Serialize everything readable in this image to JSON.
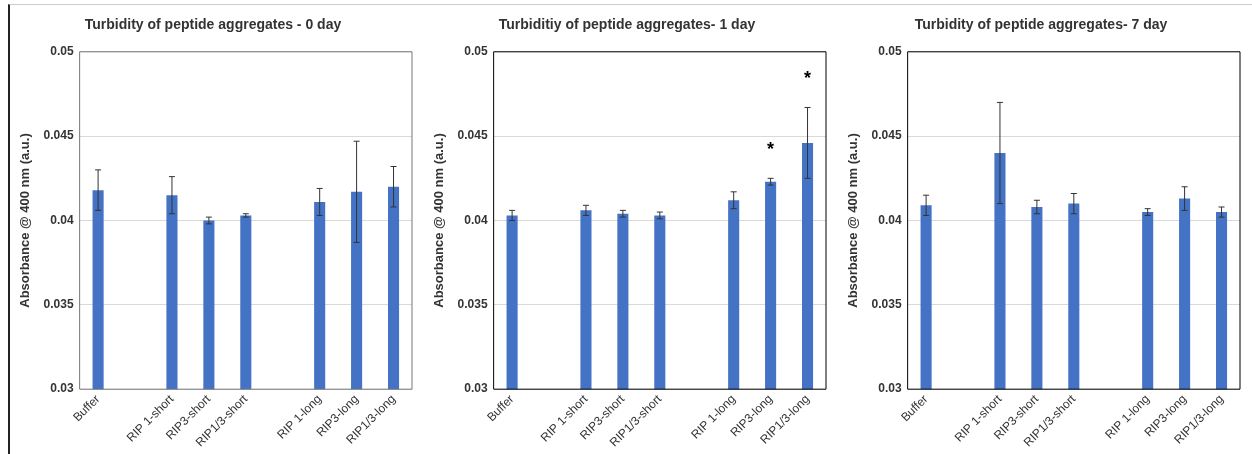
{
  "chart_data": [
    {
      "type": "bar",
      "title": "Turbidity of peptide aggregates - 0 day",
      "ylabel": "Absorbance @ 400 nm (a.u.)",
      "categories": [
        "Buffer",
        null,
        "RIP 1-short",
        "RIP3-short",
        "RIP1/3-short",
        null,
        "RIP 1-long",
        "RIP3-long",
        "RIP1/3-long"
      ],
      "values": [
        0.0418,
        null,
        0.0415,
        0.04,
        0.0403,
        null,
        0.0411,
        0.0417,
        0.042
      ],
      "errors": [
        0.0012,
        null,
        0.0011,
        0.0002,
        0.0001,
        null,
        0.0008,
        0.003,
        0.0012
      ],
      "color": "#4472c4",
      "ylim": [
        0.03,
        0.05
      ],
      "yticks": [
        0.03,
        0.035,
        0.04,
        0.045,
        0.05
      ],
      "grid": "y",
      "legend": false
    },
    {
      "type": "bar",
      "title": "Turbiditiy of peptide aggregates- 1 day",
      "ylabel": "Absorbance @ 400 nm (a.u.)",
      "categories": [
        "Buffer",
        null,
        "RIP 1-short",
        "RIP3-short",
        "RIP1/3-short",
        null,
        "RIP 1-long",
        "RIP3-long",
        "RIP1/3-long"
      ],
      "values": [
        0.0403,
        null,
        0.0406,
        0.0404,
        0.0403,
        null,
        0.0412,
        0.0423,
        0.0446
      ],
      "errors": [
        0.0003,
        null,
        0.0003,
        0.0002,
        0.0002,
        null,
        0.0005,
        0.0002,
        0.0021
      ],
      "color": "#4472c4",
      "ylim": [
        0.03,
        0.05
      ],
      "yticks": [
        0.03,
        0.035,
        0.04,
        0.045,
        0.05
      ],
      "grid": "y",
      "legend": false,
      "annotations": [
        {
          "text": "*",
          "x": "RIP3-long",
          "y": 0.0425
        },
        {
          "text": "*",
          "x": "RIP1/3-long",
          "y": 0.0467
        }
      ]
    },
    {
      "type": "bar",
      "title": "Turbidity of peptide aggregates- 7 day",
      "ylabel": "Absorbance @ 400 nm (a.u.)",
      "categories": [
        "Buffer",
        null,
        "RIP 1-short",
        "RIP3-short",
        "RIP1/3-short",
        null,
        "RIP 1-long",
        "RIP3-long",
        "RIP1/3-long"
      ],
      "values": [
        0.0409,
        null,
        0.044,
        0.0408,
        0.041,
        null,
        0.0405,
        0.0413,
        0.0405
      ],
      "errors": [
        0.0006,
        null,
        0.003,
        0.0004,
        0.0006,
        null,
        0.0002,
        0.0007,
        0.0003
      ],
      "color": "#4472c4",
      "ylim": [
        0.03,
        0.05
      ],
      "yticks": [
        0.03,
        0.035,
        0.04,
        0.045,
        0.05
      ],
      "grid": "y",
      "legend": false
    }
  ]
}
